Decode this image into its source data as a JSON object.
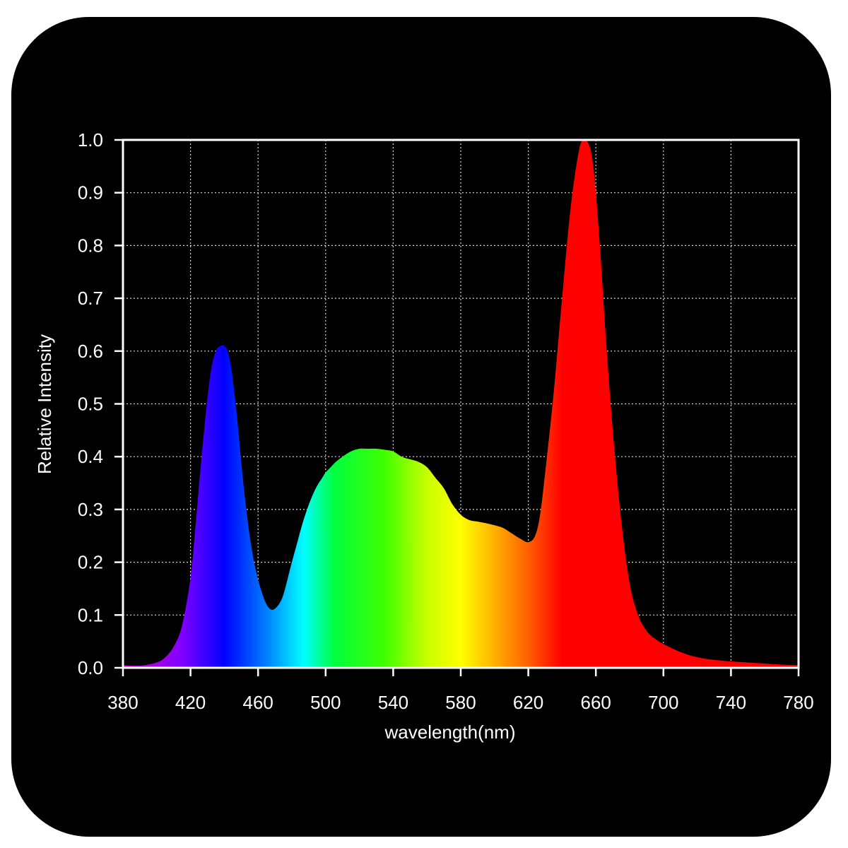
{
  "chart_data": {
    "type": "area",
    "xlabel": "wavelength(nm)",
    "ylabel": "Relative Intensity",
    "xlim": [
      380,
      780
    ],
    "ylim": [
      0,
      1.0
    ],
    "x_ticks": [
      "380",
      "420",
      "460",
      "500",
      "540",
      "580",
      "620",
      "660",
      "700",
      "740",
      "780"
    ],
    "y_ticks": [
      "0.0",
      "0.1",
      "0.2",
      "0.3",
      "0.4",
      "0.5",
      "0.6",
      "0.7",
      "0.8",
      "0.9",
      "1.0"
    ],
    "grid": true,
    "fill": "visible-spectrum gradient by wavelength",
    "colors": {
      "background": "#000000",
      "frame": "#ffffff",
      "grid": "#d8d8d8",
      "text": "#ffffff"
    },
    "spectrum_stops": [
      {
        "wavelength": 380,
        "color": "#cc00cc"
      },
      {
        "wavelength": 415,
        "color": "#8000ff"
      },
      {
        "wavelength": 440,
        "color": "#0000ff"
      },
      {
        "wavelength": 465,
        "color": "#0080ff"
      },
      {
        "wavelength": 487,
        "color": "#00ffff"
      },
      {
        "wavelength": 505,
        "color": "#00ff40"
      },
      {
        "wavelength": 535,
        "color": "#40ff00"
      },
      {
        "wavelength": 560,
        "color": "#c8ff00"
      },
      {
        "wavelength": 580,
        "color": "#ffff00"
      },
      {
        "wavelength": 600,
        "color": "#ffb000"
      },
      {
        "wavelength": 620,
        "color": "#ff6000"
      },
      {
        "wavelength": 640,
        "color": "#ff0000"
      },
      {
        "wavelength": 780,
        "color": "#ff0000"
      }
    ],
    "series": [
      {
        "x": [
          380,
          390,
          400,
          405,
          410,
          415,
          420,
          423,
          426,
          429,
          432,
          435,
          438,
          440,
          442,
          444,
          446,
          448,
          450,
          453,
          456,
          459,
          462,
          465,
          468,
          471,
          474,
          476,
          478,
          480,
          483,
          486,
          489,
          492,
          495,
          498,
          500,
          503,
          506,
          510,
          515,
          520,
          525,
          530,
          535,
          540,
          545,
          550,
          555,
          560,
          565,
          570,
          575,
          580,
          585,
          590,
          595,
          600,
          605,
          610,
          615,
          620,
          624,
          627,
          630,
          635,
          640,
          645,
          650,
          653,
          656,
          658,
          660,
          663,
          666,
          670,
          675,
          680,
          685,
          690,
          695,
          700,
          710,
          720,
          730,
          740,
          750,
          760,
          770,
          780
        ],
        "y": [
          0.005,
          0.004,
          0.01,
          0.02,
          0.04,
          0.08,
          0.17,
          0.27,
          0.38,
          0.48,
          0.56,
          0.6,
          0.61,
          0.61,
          0.6,
          0.57,
          0.52,
          0.46,
          0.39,
          0.3,
          0.23,
          0.18,
          0.145,
          0.12,
          0.11,
          0.115,
          0.13,
          0.15,
          0.175,
          0.2,
          0.235,
          0.27,
          0.3,
          0.325,
          0.345,
          0.36,
          0.37,
          0.38,
          0.39,
          0.4,
          0.41,
          0.415,
          0.415,
          0.415,
          0.413,
          0.41,
          0.4,
          0.395,
          0.39,
          0.38,
          0.36,
          0.34,
          0.31,
          0.29,
          0.28,
          0.277,
          0.274,
          0.27,
          0.265,
          0.255,
          0.245,
          0.238,
          0.25,
          0.29,
          0.37,
          0.52,
          0.7,
          0.87,
          0.98,
          1.0,
          0.99,
          0.96,
          0.9,
          0.77,
          0.62,
          0.45,
          0.28,
          0.16,
          0.1,
          0.07,
          0.055,
          0.045,
          0.03,
          0.02,
          0.015,
          0.012,
          0.01,
          0.008,
          0.006,
          0.005
        ]
      }
    ]
  }
}
